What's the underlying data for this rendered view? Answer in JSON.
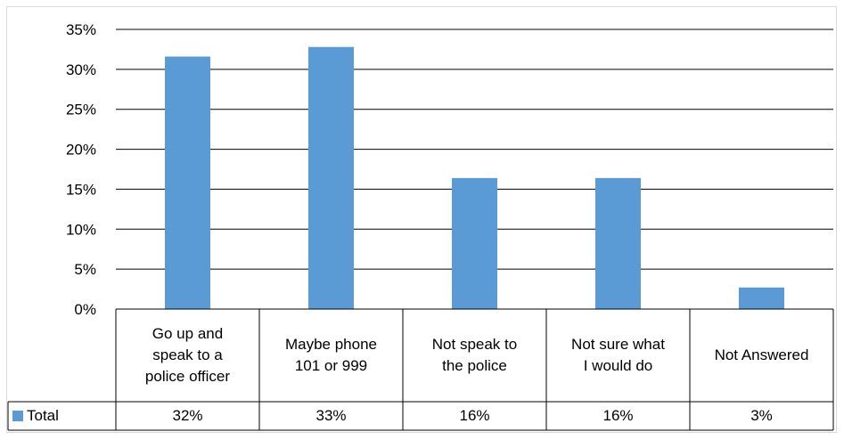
{
  "chart_data": {
    "type": "bar",
    "categories": [
      "Go up and\nspeak to a\npolice officer",
      "Maybe phone\n101 or 999",
      "Not speak to\nthe police",
      "Not sure what\nI would do",
      "Not Answered"
    ],
    "series": [
      {
        "name": "Total",
        "values": [
          31.6,
          32.8,
          16.4,
          16.4,
          2.7
        ],
        "color": "#5b9bd5"
      }
    ],
    "table_values": [
      "32%",
      "33%",
      "16%",
      "16%",
      "3%"
    ],
    "ylim": [
      0,
      35
    ],
    "yticks": [
      "0%",
      "5%",
      "10%",
      "15%",
      "20%",
      "25%",
      "30%",
      "35%"
    ],
    "grid": true,
    "legend": "in data table"
  }
}
